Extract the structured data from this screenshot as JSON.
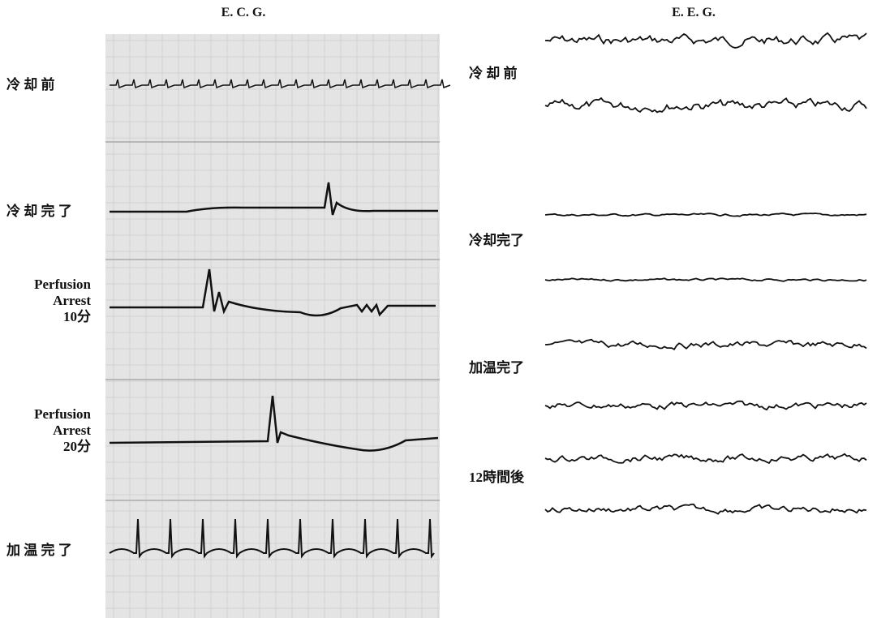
{
  "ecg": {
    "title": "E. C. G.",
    "labels": [
      [
        "冷 却 前"
      ],
      [
        "冷 却 完 了"
      ],
      [
        "Perfusion",
        "Arrest",
        "10分"
      ],
      [
        "Perfusion",
        "Arrest",
        "20分"
      ],
      [
        "加 温 完 了"
      ]
    ]
  },
  "eeg": {
    "title": "E. E. G.",
    "labels": [
      "冷 却 前",
      "冷却完了",
      "加温完了",
      "12時間後"
    ]
  }
}
